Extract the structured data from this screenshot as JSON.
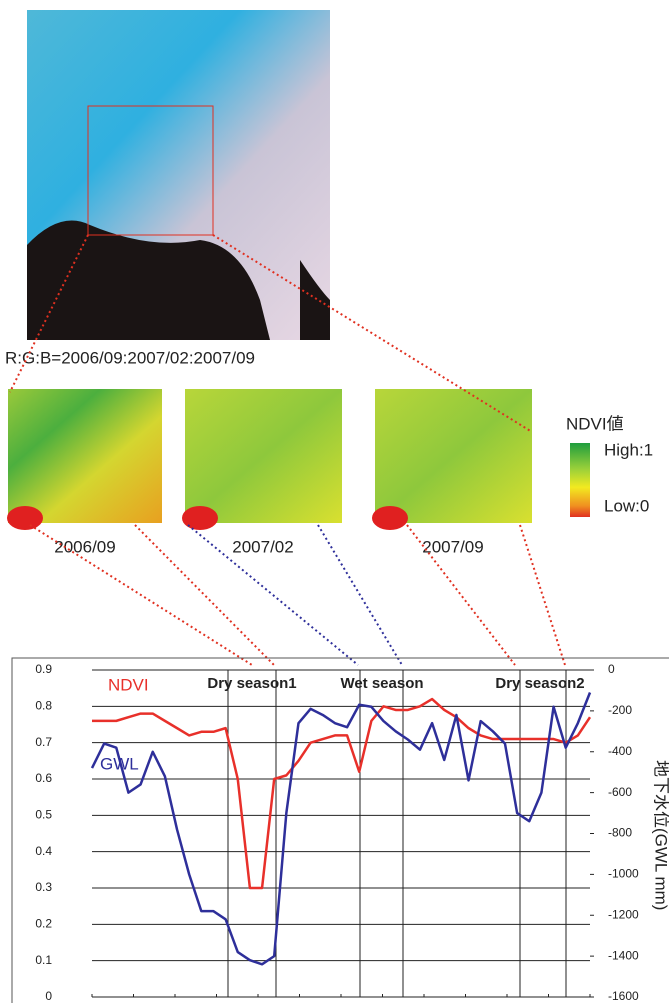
{
  "image_caption": "R:G:B=2006/09:2007/02:2007/09",
  "maps": [
    "2006/09",
    "2007/02",
    "2007/09"
  ],
  "legend": {
    "title": "NDVI値",
    "high": "High:1",
    "low": "Low:0"
  },
  "chart_data": {
    "type": "line",
    "annotations": [
      "Dry season1",
      "Wet season",
      "Dry season2"
    ],
    "y2_label": "地下水位(GWL mm)",
    "ylim": [
      0,
      0.9
    ],
    "yticks": [
      0,
      0.1,
      0.2,
      0.3,
      0.4,
      0.5,
      0.6,
      0.7,
      0.8,
      0.9
    ],
    "y2lim": [
      -1600,
      0
    ],
    "y2ticks": [
      -1600,
      -1400,
      -1200,
      -1000,
      -800,
      -600,
      -400,
      -200,
      0
    ],
    "grid": true,
    "series": [
      {
        "name": "NDVI",
        "color": "#e8302a",
        "values": [
          0.76,
          0.76,
          0.76,
          0.77,
          0.78,
          0.78,
          0.76,
          0.74,
          0.72,
          0.73,
          0.73,
          0.74,
          0.6,
          0.3,
          0.3,
          0.6,
          0.61,
          0.65,
          0.7,
          0.71,
          0.72,
          0.72,
          0.62,
          0.76,
          0.8,
          0.79,
          0.79,
          0.8,
          0.82,
          0.79,
          0.77,
          0.74,
          0.72,
          0.71,
          0.71,
          0.71,
          0.71,
          0.71,
          0.71,
          0.7,
          0.72,
          0.77
        ]
      },
      {
        "name": "GWL",
        "color": "#2e2f9a",
        "axis": "y2",
        "values": [
          -480,
          -360,
          -380,
          -600,
          -560,
          -400,
          -520,
          -780,
          -1000,
          -1180,
          -1180,
          -1220,
          -1380,
          -1420,
          -1440,
          -1400,
          -700,
          -260,
          -190,
          -220,
          -260,
          -280,
          -170,
          -180,
          -250,
          -300,
          -340,
          -390,
          -260,
          -440,
          -220,
          -540,
          -250,
          -300,
          -360,
          -700,
          -740,
          -600,
          -180,
          -380,
          -260,
          -110
        ]
      }
    ]
  }
}
